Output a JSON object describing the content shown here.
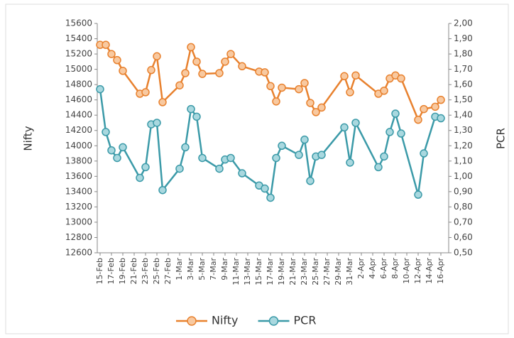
{
  "chart_data": {
    "type": "line",
    "y_label": "Nifty",
    "y2_label": "PCR",
    "x": [
      "15-Feb",
      "16-Feb",
      "17-Feb",
      "18-Feb",
      "19-Feb",
      "22-Feb",
      "23-Feb",
      "24-Feb",
      "25-Feb",
      "26-Feb",
      "1-Mar",
      "2-Mar",
      "3-Mar",
      "4-Mar",
      "5-Mar",
      "8-Mar",
      "9-Mar",
      "10-Mar",
      "12-Mar",
      "15-Mar",
      "16-Mar",
      "17-Mar",
      "18-Mar",
      "19-Mar",
      "22-Mar",
      "23-Mar",
      "24-Mar",
      "25-Mar",
      "26-Mar",
      "30-Mar",
      "31-Mar",
      "1-Apr",
      "5-Apr",
      "6-Apr",
      "7-Apr",
      "8-Apr",
      "9-Apr",
      "12-Apr",
      "13-Apr",
      "15-Apr",
      "16-Apr"
    ],
    "xlim": [
      "15-Feb",
      "16-Apr"
    ],
    "xticks": [
      "15-Feb",
      "17-Feb",
      "19-Feb",
      "21-Feb",
      "23-Feb",
      "25-Feb",
      "27-Feb",
      "1-Mar",
      "3-Mar",
      "5-Mar",
      "7-Mar",
      "9-Mar",
      "11-Mar",
      "13-Mar",
      "15-Mar",
      "17-Mar",
      "19-Mar",
      "21-Mar",
      "23-Mar",
      "25-Mar",
      "27-Mar",
      "29-Mar",
      "31-Mar",
      "2-Apr",
      "4-Apr",
      "6-Apr",
      "8-Apr",
      "10-Apr",
      "12-Apr",
      "14-Apr",
      "16-Apr"
    ],
    "ylim": [
      12600,
      15600
    ],
    "yticks": [
      15600,
      15400,
      15200,
      15000,
      14800,
      14600,
      14400,
      14200,
      14000,
      13800,
      13600,
      13400,
      13200,
      13000,
      12800,
      12600
    ],
    "y2lim": [
      0.5,
      2.0
    ],
    "y2ticks": [
      {
        "value": 2.0,
        "label": "2,00"
      },
      {
        "value": 1.9,
        "label": "1,90"
      },
      {
        "value": 1.8,
        "label": "1,80"
      },
      {
        "value": 1.7,
        "label": "1,70"
      },
      {
        "value": 1.6,
        "label": "1,60"
      },
      {
        "value": 1.5,
        "label": "1,50"
      },
      {
        "value": 1.4,
        "label": "1,40"
      },
      {
        "value": 1.3,
        "label": "1,30"
      },
      {
        "value": 1.2,
        "label": "1,20"
      },
      {
        "value": 1.1,
        "label": "1,10"
      },
      {
        "value": 1.0,
        "label": "1,00"
      },
      {
        "value": 0.9,
        "label": "0,90"
      },
      {
        "value": 0.8,
        "label": "0,80"
      },
      {
        "value": 0.7,
        "label": "0,70"
      },
      {
        "value": 0.6,
        "label": "0,60"
      },
      {
        "value": 0.5,
        "label": "0,50"
      }
    ],
    "legend": "bottom",
    "series": [
      {
        "name": "Nifty",
        "color": "#e8812e",
        "marker_color": "#f8c9a0",
        "values": [
          15320,
          15320,
          15200,
          15120,
          14980,
          14680,
          14700,
          14990,
          15170,
          14570,
          14790,
          14950,
          15290,
          15100,
          14940,
          14950,
          15100,
          15200,
          15040,
          14970,
          14960,
          14780,
          14580,
          14760,
          14740,
          14820,
          14560,
          14440,
          14500,
          14910,
          14700,
          14920,
          14680,
          14720,
          14880,
          14920,
          14880,
          14340,
          14480,
          14510,
          14600
        ]
      },
      {
        "name": "PCR",
        "color": "#3b9aa8",
        "marker_color": "#a9d8df",
        "axis": "y2",
        "values": [
          1.57,
          1.29,
          1.17,
          1.12,
          1.19,
          0.99,
          1.06,
          1.34,
          1.35,
          0.91,
          1.05,
          1.19,
          1.44,
          1.39,
          1.12,
          1.05,
          1.11,
          1.12,
          1.02,
          0.94,
          0.92,
          0.86,
          1.12,
          1.2,
          1.14,
          1.24,
          0.97,
          1.13,
          1.14,
          1.32,
          1.09,
          1.35,
          1.06,
          1.13,
          1.29,
          1.41,
          1.28,
          0.88,
          1.15,
          1.39,
          1.38
        ]
      }
    ]
  }
}
